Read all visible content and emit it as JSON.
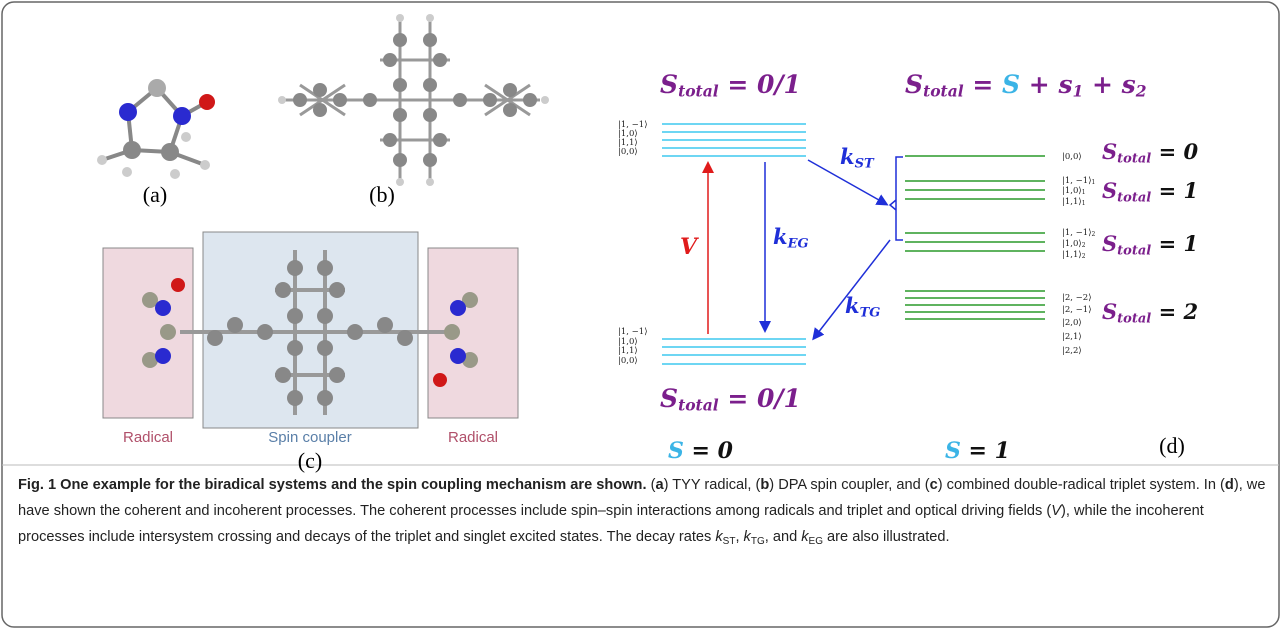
{
  "panel_labels": [
    "(a)",
    "(b)",
    "(c)",
    "(d)"
  ],
  "box_labels": [
    "Radical",
    "Spin coupler",
    "Radical"
  ],
  "diagram": {
    "math": [
      {
        "color": "#7b1f8c",
        "terms": [
          {
            "text": "S",
            "sub": "total"
          },
          {
            "text": " = 0/1"
          }
        ]
      },
      {
        "color": "#7b1f8c",
        "terms": [
          {
            "text": "S",
            "sub": "total"
          },
          {
            "text": " = "
          },
          {
            "text": "S",
            "color": "#3bb4e6"
          },
          {
            "text": " + "
          },
          {
            "text": "s",
            "sub": "1"
          },
          {
            "text": " + "
          },
          {
            "text": "s",
            "sub": "2"
          }
        ]
      },
      {
        "color": "#7b1f8c",
        "terms": [
          {
            "text": "S",
            "sub": "total"
          },
          {
            "text": " = 0",
            "color": "#111111"
          }
        ]
      },
      {
        "color": "#7b1f8c",
        "terms": [
          {
            "text": "S",
            "sub": "total"
          },
          {
            "text": " = 1",
            "color": "#111111"
          }
        ]
      },
      {
        "color": "#7b1f8c",
        "terms": [
          {
            "text": "S",
            "sub": "total"
          },
          {
            "text": " = 1",
            "color": "#111111"
          }
        ]
      },
      {
        "color": "#7b1f8c",
        "terms": [
          {
            "text": "S",
            "sub": "total"
          },
          {
            "text": " = 2",
            "color": "#111111"
          }
        ]
      },
      {
        "color": "#7b1f8c",
        "terms": [
          {
            "text": "S",
            "sub": "total"
          },
          {
            "text": " = 0/1"
          }
        ]
      },
      {
        "color": "#111111",
        "terms": [
          {
            "text": "S",
            "color": "#3bb4e6"
          },
          {
            "text": " = 0"
          }
        ]
      },
      {
        "color": "#111111",
        "terms": [
          {
            "text": "S",
            "color": "#3bb4e6"
          },
          {
            "text": " = 1"
          }
        ]
      },
      {
        "color": "#e01b1b",
        "terms": [
          {
            "text": "V"
          }
        ]
      },
      {
        "color": "#1f2fd8",
        "terms": [
          {
            "text": "k",
            "sub": "ST"
          }
        ]
      },
      {
        "color": "#1f2fd8",
        "terms": [
          {
            "text": "k",
            "sub": "EG"
          }
        ]
      },
      {
        "color": "#1f2fd8",
        "terms": [
          {
            "text": "k",
            "sub": "TG"
          }
        ]
      }
    ],
    "kets": [
      [
        {
          "text": "|1, −1⟩"
        },
        {
          "text": "|1,0⟩"
        },
        {
          "text": "|1,1⟩"
        },
        {
          "text": "|0,0⟩"
        }
      ],
      [
        {
          "text": "|1, −1⟩"
        },
        {
          "text": "|1,0⟩"
        },
        {
          "text": "|1,1⟩"
        },
        {
          "text": "|0,0⟩"
        }
      ],
      [
        {
          "text": "|0,0⟩"
        }
      ],
      [
        {
          "text": "|1, −1⟩",
          "sub": "1"
        },
        {
          "text": "|1,0⟩",
          "sub": "1"
        },
        {
          "text": "|1,1⟩",
          "sub": "1"
        }
      ],
      [
        {
          "text": "|1, −1⟩",
          "sub": "2"
        },
        {
          "text": "|1,0⟩",
          "sub": "2"
        },
        {
          "text": "|1,1⟩",
          "sub": "2"
        }
      ],
      [
        {
          "text": "|2, −2⟩"
        },
        {
          "text": "|2, −1⟩"
        },
        {
          "text": "|2,0⟩"
        },
        {
          "text": "|2,1⟩"
        },
        {
          "text": "|2,2⟩"
        }
      ]
    ]
  },
  "caption": {
    "segments": [
      {
        "text": "Fig. 1 One example for the biradical systems and the spin coupling mechanism are shown.",
        "style": "bold"
      },
      {
        "text": " (",
        "style": "plain"
      },
      {
        "text": "a",
        "style": "bold"
      },
      {
        "text": ") TYY radical, (",
        "style": "plain"
      },
      {
        "text": "b",
        "style": "bold"
      },
      {
        "text": ") DPA spin coupler, and (",
        "style": "plain"
      },
      {
        "text": "c",
        "style": "bold"
      },
      {
        "text": ") combined double-radical triplet system. In (",
        "style": "plain"
      },
      {
        "text": "d",
        "style": "bold"
      },
      {
        "text": "), we have shown the coherent and incoherent processes. The coherent processes include spin–spin interactions among radicals and triplet and optical driving fields (",
        "style": "plain"
      },
      {
        "text": "V",
        "style": "italic"
      },
      {
        "text": "), while the incoherent processes include intersystem crossing and decays of the triplet and singlet excited states. The decay rates ",
        "style": "plain"
      },
      {
        "text": "k",
        "style": "italic"
      },
      {
        "text": "ST",
        "style": "sub"
      },
      {
        "text": ", ",
        "style": "plain"
      },
      {
        "text": "k",
        "style": "italic"
      },
      {
        "text": "TG",
        "style": "sub"
      },
      {
        "text": ", and ",
        "style": "plain"
      },
      {
        "text": "k",
        "style": "italic"
      },
      {
        "text": "EG",
        "style": "sub"
      },
      {
        "text": " are also illustrated.",
        "style": "plain"
      }
    ]
  }
}
